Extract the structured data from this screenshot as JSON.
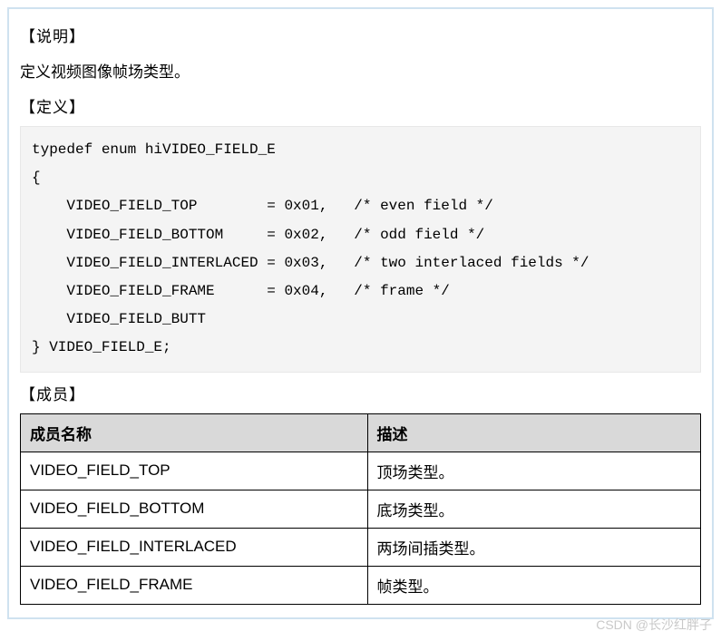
{
  "sections": {
    "explain_title": "【说明】",
    "explain_text": "定义视频图像帧场类型。",
    "define_title": "【定义】",
    "members_title": "【成员】"
  },
  "code": "typedef enum hiVIDEO_FIELD_E\n{\n    VIDEO_FIELD_TOP        = 0x01,   /* even field */\n    VIDEO_FIELD_BOTTOM     = 0x02,   /* odd field */\n    VIDEO_FIELD_INTERLACED = 0x03,   /* two interlaced fields */\n    VIDEO_FIELD_FRAME      = 0x04,   /* frame */\n    VIDEO_FIELD_BUTT\n} VIDEO_FIELD_E;",
  "table": {
    "header_name": "成员名称",
    "header_desc": "描述",
    "rows": [
      {
        "name": "VIDEO_FIELD_TOP",
        "desc": "顶场类型。"
      },
      {
        "name": "VIDEO_FIELD_BOTTOM",
        "desc": "底场类型。"
      },
      {
        "name": "VIDEO_FIELD_INTERLACED",
        "desc": "两场间插类型。"
      },
      {
        "name": "VIDEO_FIELD_FRAME",
        "desc": "帧类型。"
      }
    ]
  },
  "watermark": "CSDN @长沙红胖子"
}
